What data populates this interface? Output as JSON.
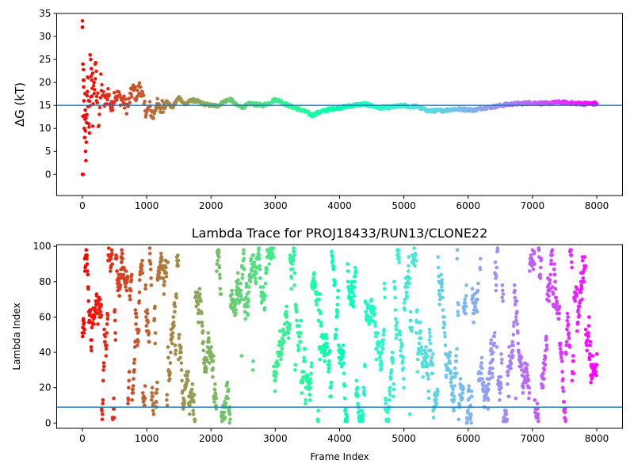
{
  "chart_data": [
    {
      "type": "scatter",
      "title": "",
      "xlabel": "",
      "ylabel": "ΔG (kT)",
      "xlim": [
        -400,
        8400
      ],
      "ylim": [
        -4.6,
        35
      ],
      "x_ticks": [
        0,
        1000,
        2000,
        3000,
        4000,
        5000,
        6000,
        7000,
        8000
      ],
      "y_ticks": [
        0,
        5,
        10,
        15,
        20,
        25,
        30,
        35
      ],
      "colormap": "rainbow (red at frame 0 → violet at frame 8000)",
      "reference_line": {
        "y": 15.0,
        "color": "#1f77b4"
      },
      "series_trace": [
        [
          0,
          32
        ],
        [
          5,
          0
        ],
        [
          10,
          24
        ],
        [
          20,
          20
        ],
        [
          30,
          10
        ],
        [
          40,
          16
        ],
        [
          60,
          7
        ],
        [
          80,
          19
        ],
        [
          100,
          12
        ],
        [
          130,
          20
        ],
        [
          160,
          14
        ],
        [
          200,
          22
        ],
        [
          250,
          13
        ],
        [
          300,
          19
        ],
        [
          350,
          15
        ],
        [
          400,
          18
        ],
        [
          450,
          14
        ],
        [
          500,
          17.5
        ],
        [
          600,
          16.5
        ],
        [
          700,
          14.5
        ],
        [
          780,
          18.5
        ],
        [
          850,
          17
        ],
        [
          900,
          19.5
        ],
        [
          960,
          15
        ],
        [
          1000,
          13.5
        ],
        [
          1050,
          14.5
        ],
        [
          1100,
          12.5
        ],
        [
          1150,
          15.5
        ],
        [
          1200,
          14
        ],
        [
          1300,
          16
        ],
        [
          1400,
          14.5
        ],
        [
          1500,
          16.8
        ],
        [
          1600,
          15.2
        ],
        [
          1700,
          16.2
        ],
        [
          1800,
          15.8
        ],
        [
          1900,
          15.3
        ],
        [
          2000,
          15.0
        ],
        [
          2100,
          14.9
        ],
        [
          2200,
          15.8
        ],
        [
          2300,
          16.4
        ],
        [
          2400,
          15.0
        ],
        [
          2500,
          14.6
        ],
        [
          2600,
          15.4
        ],
        [
          2700,
          15.2
        ],
        [
          2800,
          15.0
        ],
        [
          2900,
          15.5
        ],
        [
          3000,
          16.3
        ],
        [
          3100,
          15.8
        ],
        [
          3200,
          15.0
        ],
        [
          3300,
          14.5
        ],
        [
          3400,
          14.0
        ],
        [
          3500,
          13.5
        ],
        [
          3560,
          12.8
        ],
        [
          3700,
          13.6
        ],
        [
          3800,
          14.0
        ],
        [
          3900,
          14.3
        ],
        [
          4000,
          14.5
        ],
        [
          4200,
          15.0
        ],
        [
          4400,
          15.3
        ],
        [
          4500,
          14.9
        ],
        [
          4600,
          14.5
        ],
        [
          4800,
          14.6
        ],
        [
          5000,
          15.0
        ],
        [
          5100,
          14.7
        ],
        [
          5200,
          14.8
        ],
        [
          5300,
          14.2
        ],
        [
          5400,
          13.8
        ],
        [
          5600,
          13.9
        ],
        [
          5800,
          14.2
        ],
        [
          6000,
          14.1
        ],
        [
          6100,
          14.0
        ],
        [
          6200,
          14.4
        ],
        [
          6400,
          14.7
        ],
        [
          6600,
          15.2
        ],
        [
          6800,
          15.4
        ],
        [
          7000,
          15.6
        ],
        [
          7200,
          15.4
        ],
        [
          7400,
          15.7
        ],
        [
          7600,
          15.5
        ],
        [
          7800,
          15.4
        ],
        [
          8000,
          15.4
        ]
      ]
    },
    {
      "type": "scatter",
      "title": "Lambda Trace for PROJ18433/RUN13/CLONE22",
      "xlabel": "Frame Index",
      "ylabel": "Lambda Index",
      "xlim": [
        -400,
        8400
      ],
      "ylim": [
        -3,
        101
      ],
      "x_ticks": [
        0,
        1000,
        2000,
        3000,
        4000,
        5000,
        6000,
        7000,
        8000
      ],
      "y_ticks": [
        0,
        20,
        40,
        60,
        80,
        100
      ],
      "colormap": "rainbow (red at frame 0 → violet at frame 8000)",
      "reference_line": {
        "y": 9,
        "color": "#1f77b4"
      },
      "points": "approximately 8000 frames, one lambda index (0–99) per frame, scattered across the full range"
    }
  ]
}
